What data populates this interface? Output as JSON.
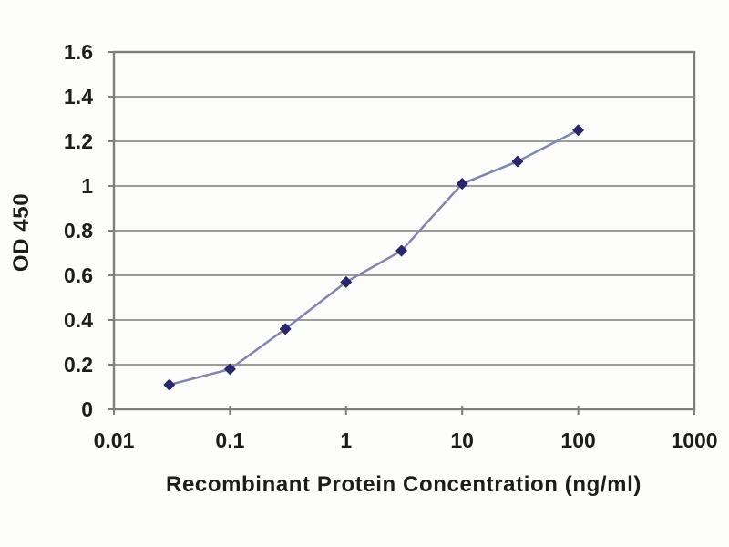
{
  "chart_data": {
    "type": "line",
    "title": "",
    "xlabel": "Recombinant Protein Concentration (ng/ml)",
    "ylabel": "OD 450",
    "x_scale": "log",
    "xlim": [
      0.01,
      1000
    ],
    "ylim": [
      0,
      1.6
    ],
    "x": [
      0.03,
      0.1,
      0.3,
      1,
      3,
      10,
      30,
      100
    ],
    "y": [
      0.11,
      0.18,
      0.36,
      0.57,
      0.71,
      1.01,
      1.11,
      1.25
    ],
    "x_ticks": [
      "0.01",
      "0.1",
      "1",
      "10",
      "100",
      "1000"
    ],
    "x_tick_values": [
      0.01,
      0.1,
      1,
      10,
      100,
      1000
    ],
    "y_ticks": [
      "0",
      "0.2",
      "0.4",
      "0.6",
      "0.8",
      "1",
      "1.2",
      "1.4",
      "1.6"
    ],
    "y_tick_values": [
      0,
      0.2,
      0.4,
      0.6,
      0.8,
      1,
      1.2,
      1.4,
      1.6
    ],
    "grid": "horizontal",
    "legend_position": "none",
    "marker": "diamond",
    "colors": {
      "line": "#8285af",
      "marker": "#2a266c",
      "axis": "#7e7e7e",
      "grid": "#8f8f8f",
      "text": "#1c1c1c",
      "background": "#fdfdfc",
      "plot_background": "#fcfcfa"
    }
  }
}
